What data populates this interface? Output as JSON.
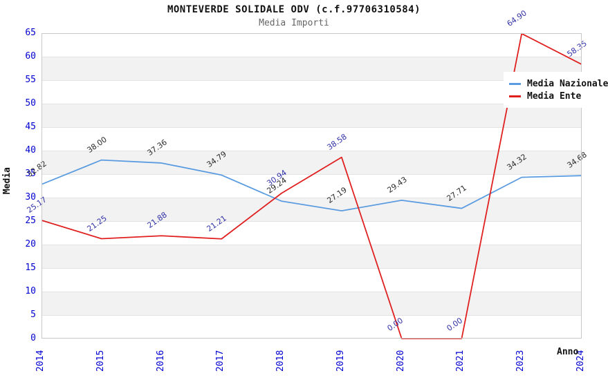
{
  "chart_data": {
    "type": "line",
    "title": "MONTEVERDE SOLIDALE ODV (c.f.97706310584)",
    "subtitle": "Media Importi",
    "xlabel": "Anno",
    "ylabel": "Media",
    "categories": [
      "2014",
      "2015",
      "2016",
      "2017",
      "2018",
      "2019",
      "2020",
      "2021",
      "2023",
      "2024"
    ],
    "series": [
      {
        "name": "Media Nazionale",
        "color": "#5b9ce0",
        "label_color": "#2b2b2b",
        "values": [
          32.82,
          38.0,
          37.36,
          34.79,
          29.24,
          27.19,
          29.43,
          27.71,
          34.32,
          34.68
        ]
      },
      {
        "name": "Media Ente",
        "color": "#e01f1f",
        "label_color": "#3232a8",
        "values": [
          25.17,
          21.25,
          21.88,
          21.21,
          30.94,
          38.58,
          0.0,
          0.0,
          64.9,
          58.35
        ]
      }
    ],
    "ylim": [
      0,
      65
    ],
    "ytick_step": 5,
    "grid": "horizontal-bands",
    "legend_position": "top-right",
    "value_label_decimals": 2
  },
  "colors": {
    "tick_label": "#0000d0",
    "band": "#f2f2f2",
    "gridline": "#e3e3e3",
    "plot_border": "#c9c9c9",
    "subtitle": "#666666"
  }
}
